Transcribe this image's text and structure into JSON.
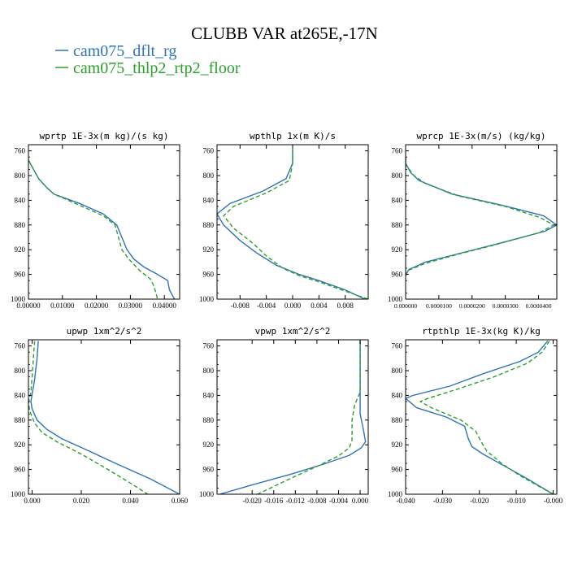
{
  "figure": {
    "title": "CLUBB VAR at265E,-17N",
    "legend": [
      {
        "label": "cam075_dflt_rg",
        "color": "#2f74b5",
        "dash": "solid"
      },
      {
        "label": "cam075_thlp2_rtp2_floor",
        "color": "#2ca02c",
        "dash": "dashed"
      }
    ]
  },
  "chart_data": [
    {
      "type": "line",
      "title": "wprtp  1E-3x(m kg)/(s kg)",
      "xlim": [
        0.0,
        0.0445
      ],
      "ylim": [
        1000,
        750
      ],
      "xticks": [
        0.0,
        0.01,
        0.02,
        0.03,
        0.04
      ],
      "xticklabels": [
        "0.00000",
        "0.01000",
        "0.02000",
        "0.03000",
        "0.04000"
      ],
      "yticks": [
        760,
        800,
        840,
        880,
        920,
        960,
        1000
      ],
      "series": [
        {
          "name": "cam075_dflt_rg",
          "points": [
            [
              0.0,
              775
            ],
            [
              0.0015,
              790
            ],
            [
              0.003,
              805
            ],
            [
              0.0055,
              820
            ],
            [
              0.0075,
              830
            ],
            [
              0.015,
              845
            ],
            [
              0.022,
              862
            ],
            [
              0.026,
              880
            ],
            [
              0.0275,
              900
            ],
            [
              0.029,
              920
            ],
            [
              0.031,
              935
            ],
            [
              0.034,
              948
            ],
            [
              0.038,
              960
            ],
            [
              0.041,
              970
            ],
            [
              0.0415,
              985
            ],
            [
              0.043,
              1000
            ]
          ]
        },
        {
          "name": "cam075_thlp2_rtp2_floor",
          "points": [
            [
              0.0,
              775
            ],
            [
              0.0015,
              790
            ],
            [
              0.003,
              805
            ],
            [
              0.0055,
              820
            ],
            [
              0.0075,
              830
            ],
            [
              0.015,
              848
            ],
            [
              0.022,
              865
            ],
            [
              0.0255,
              880
            ],
            [
              0.0265,
              900
            ],
            [
              0.0275,
              920
            ],
            [
              0.0295,
              935
            ],
            [
              0.033,
              955
            ],
            [
              0.036,
              968
            ],
            [
              0.037,
              980
            ],
            [
              0.038,
              1000
            ]
          ]
        }
      ]
    },
    {
      "type": "line",
      "title": "wpthlp  1x(m K)/s",
      "xlim": [
        -0.0115,
        0.0115
      ],
      "ylim": [
        1000,
        750
      ],
      "xticks": [
        -0.008,
        -0.004,
        0.0,
        0.004,
        0.008
      ],
      "xticklabels": [
        "-0.008",
        "-0.004",
        "0.000",
        "0.004",
        "0.008"
      ],
      "yticks": [
        760,
        800,
        840,
        880,
        920,
        960,
        1000
      ],
      "series": [
        {
          "name": "cam075_dflt_rg",
          "points": [
            [
              0.0,
              757
            ],
            [
              0.0,
              780
            ],
            [
              -0.001,
              805
            ],
            [
              -0.0045,
              825
            ],
            [
              -0.0095,
              845
            ],
            [
              -0.0115,
              862
            ],
            [
              -0.0105,
              880
            ],
            [
              -0.008,
              905
            ],
            [
              -0.0055,
              925
            ],
            [
              -0.0025,
              945
            ],
            [
              0.001,
              960
            ],
            [
              0.004,
              970
            ],
            [
              0.008,
              985
            ],
            [
              0.011,
              1000
            ]
          ]
        },
        {
          "name": "cam075_thlp2_rtp2_floor",
          "points": [
            [
              0.0,
              757
            ],
            [
              0.0,
              780
            ],
            [
              -0.0005,
              808
            ],
            [
              -0.004,
              828
            ],
            [
              -0.009,
              850
            ],
            [
              -0.0105,
              865
            ],
            [
              -0.009,
              885
            ],
            [
              -0.006,
              910
            ],
            [
              -0.004,
              930
            ],
            [
              -0.0015,
              950
            ],
            [
              0.001,
              962
            ],
            [
              0.004,
              972
            ],
            [
              0.008,
              987
            ],
            [
              0.0115,
              1000
            ]
          ]
        }
      ]
    },
    {
      "type": "line",
      "title": "wprcp  1E-3x(m/s) (kg/kg)",
      "xlim": [
        0.0,
        4.55e-05
      ],
      "ylim": [
        1000,
        750
      ],
      "xticks": [
        0.0,
        1e-05,
        2e-05,
        3e-05,
        4e-05
      ],
      "xticklabels": [
        "0.000000",
        "0.0000100",
        "0.0000200",
        "0.0000300",
        "0.0000400"
      ],
      "yticks": [
        760,
        800,
        840,
        880,
        920,
        960,
        1000
      ],
      "series": [
        {
          "name": "cam075_dflt_rg",
          "points": [
            [
              0.0,
              770
            ],
            [
              0.0,
              780
            ],
            [
              1.5e-06,
              795
            ],
            [
              4e-06,
              808
            ],
            [
              1.4e-05,
              830
            ],
            [
              2.9e-05,
              848
            ],
            [
              4.15e-05,
              865
            ],
            [
              4.55e-05,
              880
            ],
            [
              4.2e-05,
              890
            ],
            [
              2.8e-05,
              910
            ],
            [
              1.7e-05,
              925
            ],
            [
              6e-06,
              940
            ],
            [
              1e-06,
              952
            ],
            [
              0.0,
              960
            ]
          ]
        },
        {
          "name": "cam075_thlp2_rtp2_floor",
          "points": [
            [
              0.0,
              770
            ],
            [
              0.0,
              782
            ],
            [
              2.5e-06,
              800
            ],
            [
              6e-06,
              813
            ],
            [
              1.6e-05,
              833
            ],
            [
              3e-05,
              850
            ],
            [
              4.05e-05,
              868
            ],
            [
              4.45e-05,
              880
            ],
            [
              4.05e-05,
              892
            ],
            [
              2.7e-05,
              912
            ],
            [
              1.6e-05,
              927
            ],
            [
              6e-06,
              942
            ],
            [
              1e-06,
              953
            ],
            [
              0.0,
              962
            ]
          ]
        }
      ]
    },
    {
      "type": "line",
      "title": "upwp  1xm^2/s^2",
      "xlim": [
        -0.0015,
        0.06
      ],
      "ylim": [
        1000,
        750
      ],
      "xticks": [
        0.0,
        0.02,
        0.04,
        0.06
      ],
      "xticklabels": [
        "0.000",
        "0.020",
        "0.040",
        "0.060"
      ],
      "yticks": [
        760,
        800,
        840,
        880,
        920,
        960,
        1000
      ],
      "series": [
        {
          "name": "cam075_dflt_rg",
          "points": [
            [
              0.0025,
              752
            ],
            [
              0.002,
              780
            ],
            [
              0.001,
              815
            ],
            [
              0.0,
              838
            ],
            [
              -0.0005,
              850
            ],
            [
              0.0,
              862
            ],
            [
              0.002,
              880
            ],
            [
              0.006,
              895
            ],
            [
              0.012,
              910
            ],
            [
              0.022,
              928
            ],
            [
              0.035,
              952
            ],
            [
              0.048,
              975
            ],
            [
              0.06,
              1000
            ]
          ]
        },
        {
          "name": "cam075_thlp2_rtp2_floor",
          "points": [
            [
              0.001,
              752
            ],
            [
              0.0005,
              780
            ],
            [
              0.0,
              810
            ],
            [
              -0.0005,
              835
            ],
            [
              -0.0015,
              852
            ],
            [
              -0.001,
              865
            ],
            [
              0.001,
              885
            ],
            [
              0.004,
              900
            ],
            [
              0.01,
              915
            ],
            [
              0.02,
              935
            ],
            [
              0.03,
              958
            ],
            [
              0.04,
              982
            ],
            [
              0.047,
              1000
            ]
          ]
        }
      ]
    },
    {
      "type": "line",
      "title": "vpwp  1xm^2/s^2",
      "xlim": [
        -0.0265,
        0.0015
      ],
      "ylim": [
        1000,
        750
      ],
      "xticks": [
        -0.02,
        -0.016,
        -0.012,
        -0.008,
        -0.004,
        0.0
      ],
      "xticklabels": [
        "-0.020",
        "-0.016",
        "-0.012",
        "-0.008",
        "-0.004",
        "0.000"
      ],
      "yticks": [
        760,
        800,
        840,
        880,
        920,
        960,
        1000
      ],
      "series": [
        {
          "name": "cam075_dflt_rg",
          "points": [
            [
              0.0,
              752
            ],
            [
              0.0,
              800
            ],
            [
              0.0,
              840
            ],
            [
              0.0,
              870
            ],
            [
              0.0006,
              895
            ],
            [
              0.001,
              915
            ],
            [
              0.0002,
              925
            ],
            [
              -0.002,
              937
            ],
            [
              -0.007,
              952
            ],
            [
              -0.013,
              968
            ],
            [
              -0.02,
              985
            ],
            [
              -0.026,
              1000
            ]
          ]
        },
        {
          "name": "cam075_thlp2_rtp2_floor",
          "points": [
            [
              0.0,
              752
            ],
            [
              0.0,
              800
            ],
            [
              0.0,
              835
            ],
            [
              -0.001,
              855
            ],
            [
              -0.0015,
              880
            ],
            [
              -0.0015,
              912
            ],
            [
              -0.002,
              925
            ],
            [
              -0.004,
              938
            ],
            [
              -0.008,
              955
            ],
            [
              -0.013,
              975
            ],
            [
              -0.019,
              1000
            ]
          ]
        }
      ]
    },
    {
      "type": "line",
      "title": "rtpthlp  1E-3x(kg K)/kg",
      "xlim": [
        -0.04,
        0.001
      ],
      "ylim": [
        1000,
        750
      ],
      "xticks": [
        -0.04,
        -0.03,
        -0.02,
        -0.01,
        0.0
      ],
      "xticklabels": [
        "-0.040",
        "-0.030",
        "-0.020",
        "-0.010",
        "-0.000"
      ],
      "yticks": [
        760,
        800,
        840,
        880,
        920,
        960,
        1000
      ],
      "series": [
        {
          "name": "cam075_dflt_rg",
          "points": [
            [
              -0.0015,
              752
            ],
            [
              -0.004,
              770
            ],
            [
              -0.009,
              785
            ],
            [
              -0.019,
              805
            ],
            [
              -0.028,
              825
            ],
            [
              -0.038,
              840
            ],
            [
              -0.04,
              845
            ],
            [
              -0.037,
              860
            ],
            [
              -0.029,
              875
            ],
            [
              -0.024,
              890
            ],
            [
              -0.023,
              910
            ],
            [
              -0.022,
              923
            ],
            [
              -0.019,
              935
            ],
            [
              -0.013,
              955
            ],
            [
              -0.007,
              975
            ],
            [
              0.0,
              1000
            ]
          ]
        },
        {
          "name": "cam075_thlp2_rtp2_floor",
          "points": [
            [
              -0.001,
              752
            ],
            [
              -0.003,
              770
            ],
            [
              -0.007,
              788
            ],
            [
              -0.016,
              810
            ],
            [
              -0.026,
              830
            ],
            [
              -0.034,
              845
            ],
            [
              -0.036,
              850
            ],
            [
              -0.033,
              860
            ],
            [
              -0.025,
              880
            ],
            [
              -0.021,
              898
            ],
            [
              -0.0195,
              915
            ],
            [
              -0.018,
              930
            ],
            [
              -0.014,
              950
            ],
            [
              -0.009,
              970
            ],
            [
              -0.003,
              990
            ],
            [
              0.0,
              1000
            ]
          ]
        }
      ]
    }
  ]
}
